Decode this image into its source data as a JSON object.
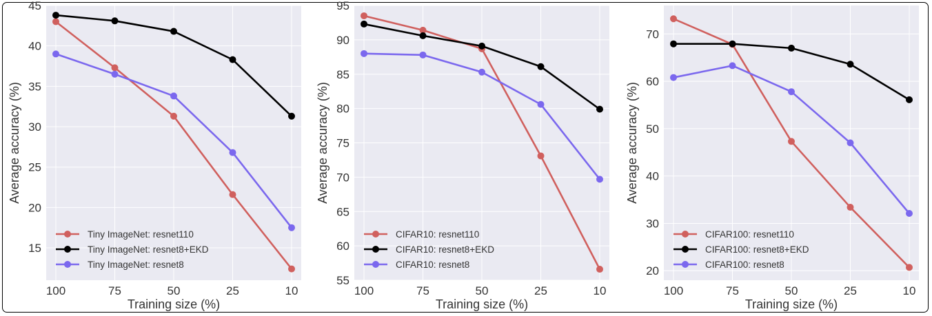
{
  "chart_data": [
    {
      "type": "line",
      "title": "",
      "xlabel": "Training size (%)",
      "ylabel": "Average accuracy (%)",
      "categories": [
        "100",
        "75",
        "50",
        "25",
        "10"
      ],
      "ylim": [
        11,
        45
      ],
      "yticks": [
        15,
        20,
        25,
        30,
        35,
        40,
        45
      ],
      "grid": true,
      "legend": "lower-left",
      "series": [
        {
          "name": "Tiny ImageNet: resnet110",
          "color": "#d0605e",
          "values": [
            43.0,
            37.3,
            31.3,
            21.6,
            12.4
          ]
        },
        {
          "name": "Tiny ImageNet: resnet8+EKD",
          "color": "#000000",
          "values": [
            43.8,
            43.1,
            41.8,
            38.3,
            31.3
          ]
        },
        {
          "name": "Tiny ImageNet: resnet8",
          "color": "#7b68ee",
          "values": [
            39.0,
            36.5,
            33.8,
            26.8,
            17.5
          ]
        }
      ]
    },
    {
      "type": "line",
      "title": "",
      "xlabel": "Training size (%)",
      "ylabel": "Average accuracy (%)",
      "categories": [
        "100",
        "75",
        "50",
        "25",
        "10"
      ],
      "ylim": [
        55,
        95
      ],
      "yticks": [
        55,
        60,
        65,
        70,
        75,
        80,
        85,
        90,
        95
      ],
      "grid": true,
      "legend": "lower-left",
      "series": [
        {
          "name": "CIFAR10: resnet110",
          "color": "#d0605e",
          "values": [
            93.5,
            91.4,
            88.7,
            73.1,
            56.6
          ]
        },
        {
          "name": "CIFAR10: resnet8+EKD",
          "color": "#000000",
          "values": [
            92.3,
            90.6,
            89.1,
            86.1,
            79.9
          ]
        },
        {
          "name": "CIFAR10: resnet8",
          "color": "#7b68ee",
          "values": [
            88.0,
            87.8,
            85.3,
            80.6,
            69.7
          ]
        }
      ]
    },
    {
      "type": "line",
      "title": "",
      "xlabel": "Training size (%)",
      "ylabel": "Average accuracy (%)",
      "categories": [
        "100",
        "75",
        "50",
        "25",
        "10"
      ],
      "ylim": [
        18,
        76
      ],
      "yticks": [
        20,
        30,
        40,
        50,
        60,
        70
      ],
      "grid": true,
      "legend": "lower-left",
      "series": [
        {
          "name": "CIFAR100: resnet110",
          "color": "#d0605e",
          "values": [
            73.2,
            67.8,
            47.3,
            33.4,
            20.7
          ]
        },
        {
          "name": "CIFAR100: resnet8+EKD",
          "color": "#000000",
          "values": [
            67.9,
            67.9,
            67.0,
            63.6,
            56.1
          ]
        },
        {
          "name": "CIFAR100: resnet8",
          "color": "#7b68ee",
          "values": [
            60.8,
            63.3,
            57.8,
            47.0,
            32.1
          ]
        }
      ]
    }
  ]
}
